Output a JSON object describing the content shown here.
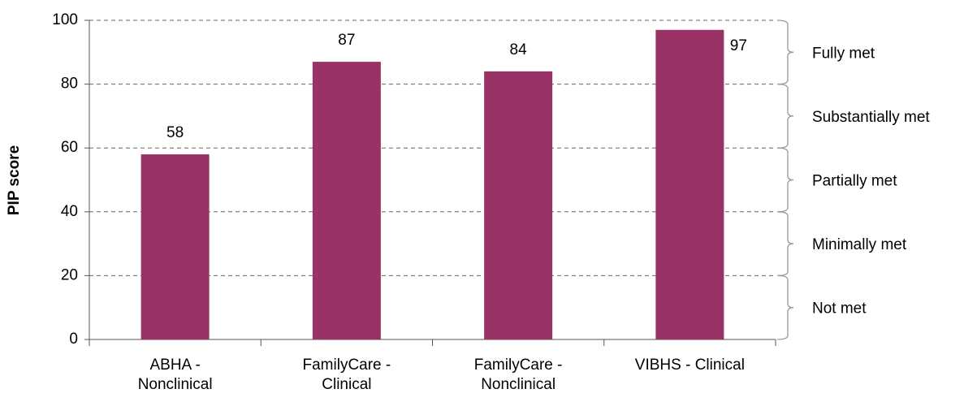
{
  "chart_data": {
    "type": "bar",
    "y_axis_label": "PIP score",
    "categories": [
      "ABHA -\nNonclinical",
      "FamilyCare -\nClinical",
      "FamilyCare -\nNonclinical",
      "VIBHS - Clinical"
    ],
    "values": [
      58,
      87,
      84,
      97
    ],
    "color": "#993366",
    "ylim": [
      0,
      100
    ],
    "yticks": [
      0,
      20,
      40,
      60,
      80,
      100
    ],
    "grid": true,
    "bands": [
      {
        "label": "Not met",
        "range": [
          0,
          20
        ]
      },
      {
        "label": "Minimally met",
        "range": [
          20,
          40
        ]
      },
      {
        "label": "Partially met",
        "range": [
          40,
          60
        ]
      },
      {
        "label": "Substantially met",
        "range": [
          60,
          80
        ]
      },
      {
        "label": "Fully met",
        "range": [
          80,
          100
        ]
      }
    ]
  }
}
